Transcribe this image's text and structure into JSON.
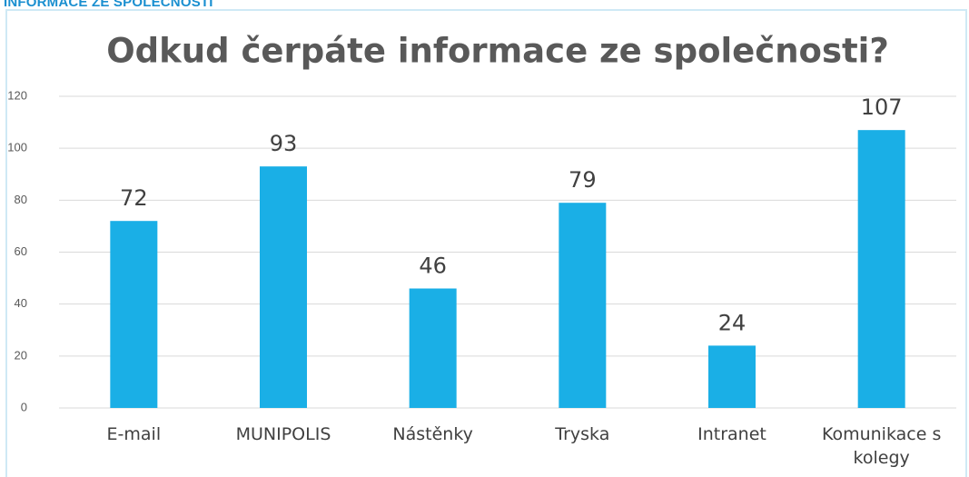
{
  "header": "INFORMACE ZE SPOLEČNOSTI",
  "chart_data": {
    "type": "bar",
    "title": "Odkud čerpáte informace ze společnosti?",
    "categories": [
      "E-mail",
      "MUNIPOLIS",
      "Nástěnky",
      "Tryska",
      "Intranet",
      "Komunikace s kolegy"
    ],
    "values": [
      72,
      93,
      46,
      79,
      24,
      107
    ],
    "color": "#1aafe6",
    "ylim": [
      0,
      120
    ],
    "yticks": [
      0,
      20,
      40,
      60,
      80,
      100,
      120
    ],
    "grid": true
  }
}
